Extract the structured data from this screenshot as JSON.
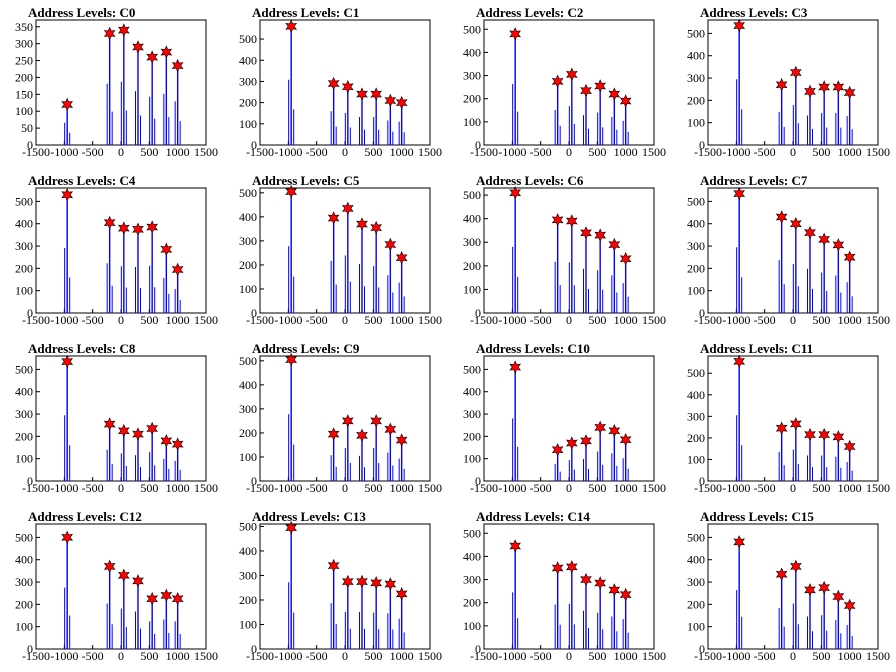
{
  "chart_data": [
    {
      "type": "bar",
      "title": "Address Levels: C0",
      "xlim": [
        -1500,
        1500
      ],
      "ylim": [
        0,
        370
      ],
      "x_ticks": [
        -1500,
        -1000,
        -500,
        0,
        500,
        1000,
        1500
      ],
      "x_tick_labels": [
        "-1500",
        "-1000",
        "-500",
        "0",
        "500",
        "1000",
        "1500"
      ],
      "y_ticks": [
        0,
        50,
        100,
        150,
        200,
        250,
        300,
        350
      ],
      "y_tick_labels": [
        "0",
        "50",
        "100",
        "150",
        "200",
        "250",
        "300",
        "350"
      ],
      "peaks": {
        "x": [
          -950,
          -200,
          50,
          300,
          550,
          800,
          1000
        ],
        "y": [
          120,
          330,
          340,
          290,
          260,
          275,
          235
        ]
      }
    },
    {
      "type": "bar",
      "title": "Address Levels: C1",
      "xlim": [
        -1500,
        1500
      ],
      "ylim": [
        0,
        590
      ],
      "x_ticks": [
        -1500,
        -1000,
        -500,
        0,
        500,
        1000,
        1500
      ],
      "x_tick_labels": [
        "-1500",
        "-1000",
        "-500",
        "0",
        "500",
        "1000",
        "1500"
      ],
      "y_ticks": [
        0,
        100,
        200,
        300,
        400,
        500
      ],
      "y_tick_labels": [
        "0",
        "100",
        "200",
        "300",
        "400",
        "500"
      ],
      "peaks": {
        "x": [
          -950,
          -200,
          50,
          300,
          550,
          800,
          1000
        ],
        "y": [
          560,
          290,
          275,
          240,
          240,
          210,
          200
        ]
      }
    },
    {
      "type": "bar",
      "title": "Address Levels: C2",
      "xlim": [
        -1500,
        1500
      ],
      "ylim": [
        0,
        540
      ],
      "x_ticks": [
        -1500,
        -1000,
        -500,
        0,
        500,
        1000,
        1500
      ],
      "x_tick_labels": [
        "-1500",
        "-1000",
        "-500",
        "0",
        "500",
        "1000",
        "1500"
      ],
      "y_ticks": [
        0,
        100,
        200,
        300,
        400,
        500
      ],
      "y_tick_labels": [
        "0",
        "100",
        "200",
        "300",
        "400",
        "500"
      ],
      "peaks": {
        "x": [
          -950,
          -200,
          50,
          300,
          550,
          800,
          1000
        ],
        "y": [
          480,
          275,
          305,
          235,
          255,
          220,
          190
        ]
      }
    },
    {
      "type": "bar",
      "title": "Address Levels: C3",
      "xlim": [
        -1500,
        1500
      ],
      "ylim": [
        0,
        560
      ],
      "x_ticks": [
        -1500,
        -1000,
        -500,
        0,
        500,
        1000,
        1500
      ],
      "x_tick_labels": [
        "-1500",
        "-1000",
        "-500",
        "0",
        "500",
        "1000",
        "1500"
      ],
      "y_ticks": [
        0,
        100,
        200,
        300,
        400,
        500
      ],
      "y_tick_labels": [
        "0",
        "100",
        "200",
        "300",
        "400",
        "500"
      ],
      "peaks": {
        "x": [
          -950,
          -200,
          50,
          300,
          550,
          800,
          1000
        ],
        "y": [
          535,
          270,
          325,
          240,
          260,
          260,
          235
        ]
      }
    },
    {
      "type": "bar",
      "title": "Address Levels: C4",
      "xlim": [
        -1500,
        1500
      ],
      "ylim": [
        0,
        560
      ],
      "x_ticks": [
        -1500,
        -1000,
        -500,
        0,
        500,
        1000,
        1500
      ],
      "x_tick_labels": [
        "-1500",
        "-1000",
        "-500",
        "0",
        "500",
        "1000",
        "1500"
      ],
      "y_ticks": [
        0,
        100,
        200,
        300,
        400,
        500
      ],
      "y_tick_labels": [
        "0",
        "100",
        "200",
        "300",
        "400",
        "500"
      ],
      "peaks": {
        "x": [
          -950,
          -200,
          50,
          300,
          550,
          800,
          1000
        ],
        "y": [
          530,
          405,
          380,
          375,
          385,
          285,
          195
        ]
      }
    },
    {
      "type": "bar",
      "title": "Address Levels: C5",
      "xlim": [
        -1500,
        1500
      ],
      "ylim": [
        0,
        520
      ],
      "x_ticks": [
        -1500,
        -1000,
        -500,
        0,
        500,
        1000,
        1500
      ],
      "x_tick_labels": [
        "-1500",
        "-1000",
        "-500",
        "0",
        "500",
        "1000",
        "1500"
      ],
      "y_ticks": [
        0,
        100,
        200,
        300,
        400,
        500
      ],
      "y_tick_labels": [
        "0",
        "100",
        "200",
        "300",
        "400",
        "500"
      ],
      "peaks": {
        "x": [
          -950,
          -200,
          50,
          300,
          550,
          800,
          1000
        ],
        "y": [
          505,
          395,
          435,
          370,
          355,
          285,
          230
        ]
      }
    },
    {
      "type": "bar",
      "title": "Address Levels: C6",
      "xlim": [
        -1500,
        1500
      ],
      "ylim": [
        0,
        530
      ],
      "x_ticks": [
        -1500,
        -1000,
        -500,
        0,
        500,
        1000,
        1500
      ],
      "x_tick_labels": [
        "-1500",
        "-1000",
        "-500",
        "0",
        "500",
        "1000",
        "1500"
      ],
      "y_ticks": [
        0,
        100,
        200,
        300,
        400,
        500
      ],
      "y_tick_labels": [
        "0",
        "100",
        "200",
        "300",
        "400",
        "500"
      ],
      "peaks": {
        "x": [
          -950,
          -200,
          50,
          300,
          550,
          800,
          1000
        ],
        "y": [
          510,
          395,
          390,
          340,
          330,
          290,
          230
        ]
      }
    },
    {
      "type": "bar",
      "title": "Address Levels: C7",
      "xlim": [
        -1500,
        1500
      ],
      "ylim": [
        0,
        560
      ],
      "x_ticks": [
        -1500,
        -1000,
        -500,
        0,
        500,
        1000,
        1500
      ],
      "x_tick_labels": [
        "-1500",
        "-1000",
        "-500",
        "0",
        "500",
        "1000",
        "1500"
      ],
      "y_ticks": [
        0,
        100,
        200,
        300,
        400,
        500
      ],
      "y_tick_labels": [
        "0",
        "100",
        "200",
        "300",
        "400",
        "500"
      ],
      "peaks": {
        "x": [
          -950,
          -200,
          50,
          300,
          550,
          800,
          1000
        ],
        "y": [
          535,
          430,
          400,
          360,
          330,
          305,
          250
        ]
      }
    },
    {
      "type": "bar",
      "title": "Address Levels: C8",
      "xlim": [
        -1500,
        1500
      ],
      "ylim": [
        0,
        560
      ],
      "x_ticks": [
        -1500,
        -1000,
        -500,
        0,
        500,
        1000,
        1500
      ],
      "x_tick_labels": [
        "-1500",
        "-1000",
        "-500",
        "0",
        "500",
        "1000",
        "1500"
      ],
      "y_ticks": [
        0,
        100,
        200,
        300,
        400,
        500
      ],
      "y_tick_labels": [
        "0",
        "100",
        "200",
        "300",
        "400",
        "500"
      ],
      "peaks": {
        "x": [
          -950,
          -200,
          50,
          300,
          550,
          800,
          1000
        ],
        "y": [
          535,
          255,
          225,
          210,
          235,
          180,
          165
        ]
      }
    },
    {
      "type": "bar",
      "title": "Address Levels: C9",
      "xlim": [
        -1500,
        1500
      ],
      "ylim": [
        0,
        520
      ],
      "x_ticks": [
        -1500,
        -1000,
        -500,
        0,
        500,
        1000,
        1500
      ],
      "x_tick_labels": [
        "-1500",
        "-1000",
        "-500",
        "0",
        "500",
        "1000",
        "1500"
      ],
      "y_ticks": [
        0,
        100,
        200,
        300,
        400,
        500
      ],
      "y_tick_labels": [
        "0",
        "100",
        "200",
        "300",
        "400",
        "500"
      ],
      "peaks": {
        "x": [
          -950,
          -200,
          50,
          300,
          550,
          800,
          1000
        ],
        "y": [
          505,
          195,
          250,
          190,
          250,
          215,
          170
        ]
      }
    },
    {
      "type": "bar",
      "title": "Address Levels: C10",
      "xlim": [
        -1500,
        1500
      ],
      "ylim": [
        0,
        560
      ],
      "x_ticks": [
        -1500,
        -1000,
        -500,
        0,
        500,
        1000,
        1500
      ],
      "x_tick_labels": [
        "-1500",
        "-1000",
        "-500",
        "0",
        "500",
        "1000",
        "1500"
      ],
      "y_ticks": [
        0,
        100,
        200,
        300,
        400,
        500
      ],
      "y_tick_labels": [
        "0",
        "100",
        "200",
        "300",
        "400",
        "500"
      ],
      "peaks": {
        "x": [
          -950,
          -200,
          50,
          300,
          550,
          800,
          1000
        ],
        "y": [
          510,
          140,
          170,
          180,
          240,
          225,
          185
        ]
      }
    },
    {
      "type": "bar",
      "title": "Address Levels: C11",
      "xlim": [
        -1500,
        1500
      ],
      "ylim": [
        0,
        580
      ],
      "x_ticks": [
        -1500,
        -1000,
        -500,
        0,
        500,
        1000,
        1500
      ],
      "x_tick_labels": [
        "-1500",
        "-1000",
        "-500",
        "0",
        "500",
        "1000",
        "1500"
      ],
      "y_ticks": [
        0,
        100,
        200,
        300,
        400,
        500
      ],
      "y_tick_labels": [
        "0",
        "100",
        "200",
        "300",
        "400",
        "500"
      ],
      "peaks": {
        "x": [
          -950,
          -200,
          50,
          300,
          550,
          800,
          1000
        ],
        "y": [
          555,
          245,
          265,
          215,
          215,
          205,
          160
        ]
      }
    },
    {
      "type": "bar",
      "title": "Address Levels: C12",
      "xlim": [
        -1500,
        1500
      ],
      "ylim": [
        0,
        560
      ],
      "x_ticks": [
        -1500,
        -1000,
        -500,
        0,
        500,
        1000,
        1500
      ],
      "x_tick_labels": [
        "-1500",
        "-1000",
        "-500",
        "0",
        "500",
        "1000",
        "1500"
      ],
      "y_ticks": [
        0,
        100,
        200,
        300,
        400,
        500
      ],
      "y_tick_labels": [
        "0",
        "100",
        "200",
        "300",
        "400",
        "500"
      ],
      "peaks": {
        "x": [
          -950,
          -200,
          50,
          300,
          550,
          800,
          1000
        ],
        "y": [
          500,
          370,
          330,
          305,
          225,
          240,
          225
        ]
      }
    },
    {
      "type": "bar",
      "title": "Address Levels: C13",
      "xlim": [
        -1500,
        1500
      ],
      "ylim": [
        0,
        510
      ],
      "x_ticks": [
        -1500,
        -1000,
        -500,
        0,
        500,
        1000,
        1500
      ],
      "x_tick_labels": [
        "-1500",
        "-1000",
        "-500",
        "0",
        "500",
        "1000",
        "1500"
      ],
      "y_ticks": [
        0,
        100,
        200,
        300,
        400,
        500
      ],
      "y_tick_labels": [
        "0",
        "100",
        "200",
        "300",
        "400",
        "500"
      ],
      "peaks": {
        "x": [
          -950,
          -200,
          50,
          300,
          550,
          800,
          1000
        ],
        "y": [
          495,
          340,
          275,
          275,
          270,
          265,
          225
        ]
      }
    },
    {
      "type": "bar",
      "title": "Address Levels: C14",
      "xlim": [
        -1500,
        1500
      ],
      "ylim": [
        0,
        540
      ],
      "x_ticks": [
        -1500,
        -1000,
        -500,
        0,
        500,
        1000,
        1500
      ],
      "x_tick_labels": [
        "-1500",
        "-1000",
        "-500",
        "0",
        "500",
        "1000",
        "1500"
      ],
      "y_ticks": [
        0,
        100,
        200,
        300,
        400,
        500
      ],
      "y_tick_labels": [
        "0",
        "100",
        "200",
        "300",
        "400",
        "500"
      ],
      "peaks": {
        "x": [
          -950,
          -200,
          50,
          300,
          550,
          800,
          1000
        ],
        "y": [
          445,
          350,
          355,
          300,
          285,
          255,
          235
        ]
      }
    },
    {
      "type": "bar",
      "title": "Address Levels: C15",
      "xlim": [
        -1500,
        1500
      ],
      "ylim": [
        0,
        560
      ],
      "x_ticks": [
        -1500,
        -1000,
        -500,
        0,
        500,
        1000,
        1500
      ],
      "x_tick_labels": [
        "-1500",
        "-1000",
        "-500",
        "0",
        "500",
        "1000",
        "1500"
      ],
      "y_ticks": [
        0,
        100,
        200,
        300,
        400,
        500
      ],
      "y_tick_labels": [
        "0",
        "100",
        "200",
        "300",
        "400",
        "500"
      ],
      "peaks": {
        "x": [
          -950,
          -200,
          50,
          300,
          550,
          800,
          1000
        ],
        "y": [
          480,
          335,
          370,
          265,
          275,
          235,
          195
        ]
      }
    }
  ],
  "colors": {
    "histogram": "#0000ff",
    "peak_marker": "#ff0000",
    "marker_outline": "#000000",
    "axis": "#000000"
  }
}
